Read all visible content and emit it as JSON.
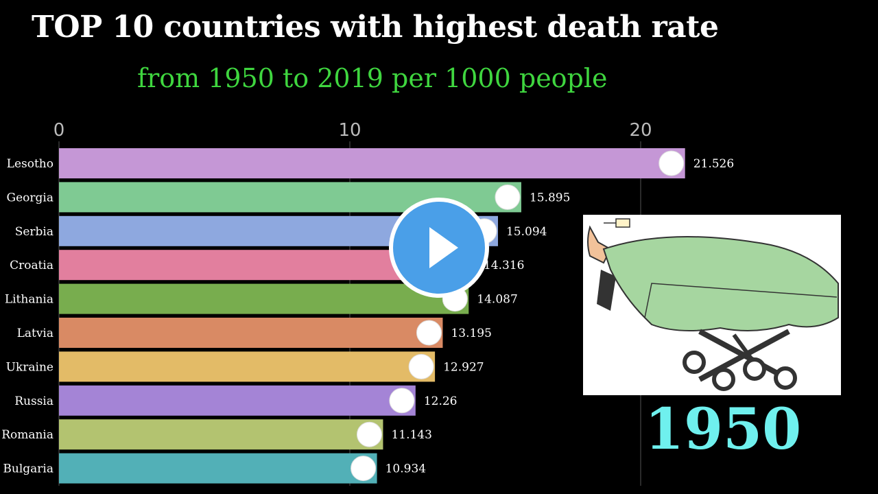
{
  "header": {
    "title": "TOP 10 countries with highest death rate",
    "subtitle": "from 1950 to 2019 per 1000 people"
  },
  "year_display": "1950",
  "chart_data": {
    "type": "bar",
    "orientation": "horizontal",
    "title": "TOP 10 countries with highest death rate",
    "subtitle": "from 1950 to 2019 per 1000 people",
    "xlabel": "",
    "ylabel": "",
    "xlim": [
      0,
      23
    ],
    "ticks": [
      0,
      10,
      20
    ],
    "categories": [
      "Lesotho",
      "Georgia",
      "Serbia",
      "Croatia",
      "Lithania",
      "Latvia",
      "Ukraine",
      "Russia",
      "Romania",
      "Bulgaria"
    ],
    "values": [
      21.526,
      15.895,
      15.094,
      14.316,
      14.087,
      13.195,
      12.927,
      12.26,
      11.143,
      10.934
    ],
    "value_labels": [
      "21.526",
      "15.895",
      "15.094",
      "14.316",
      "14.087",
      "13.195",
      "12.927",
      "12.26",
      "11.143",
      "10.934"
    ],
    "colors": [
      "#c597d6",
      "#7fca93",
      "#8ea8df",
      "#e27f9e",
      "#78ad4e",
      "#d98a64",
      "#e3bb67",
      "#a484d6",
      "#b3c370",
      "#52b0b7"
    ],
    "year": "1950"
  },
  "icons": {
    "play": "play-icon",
    "illustration": "hospital-bed-illustration"
  }
}
